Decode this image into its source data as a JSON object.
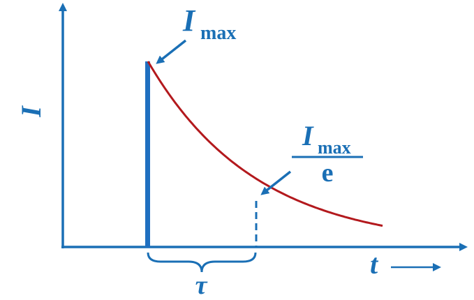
{
  "diagram": {
    "y_axis_label": "I",
    "x_axis_label": "t",
    "peak_label": {
      "symbol": "I",
      "subscript": "max"
    },
    "fraction_label": {
      "numerator_symbol": "I",
      "numerator_subscript": "max",
      "denominator": "e"
    },
    "tau_label": "τ"
  },
  "colors": {
    "axis": "#1a6fb5",
    "spike": "#1f6fc0",
    "curve": "#b3191d",
    "label": "#1a6fb5"
  },
  "icons": {
    "peak_arrow": "arrow-down-left-icon",
    "fraction_arrow": "arrow-down-left-icon",
    "time_arrow": "arrow-right-icon"
  }
}
